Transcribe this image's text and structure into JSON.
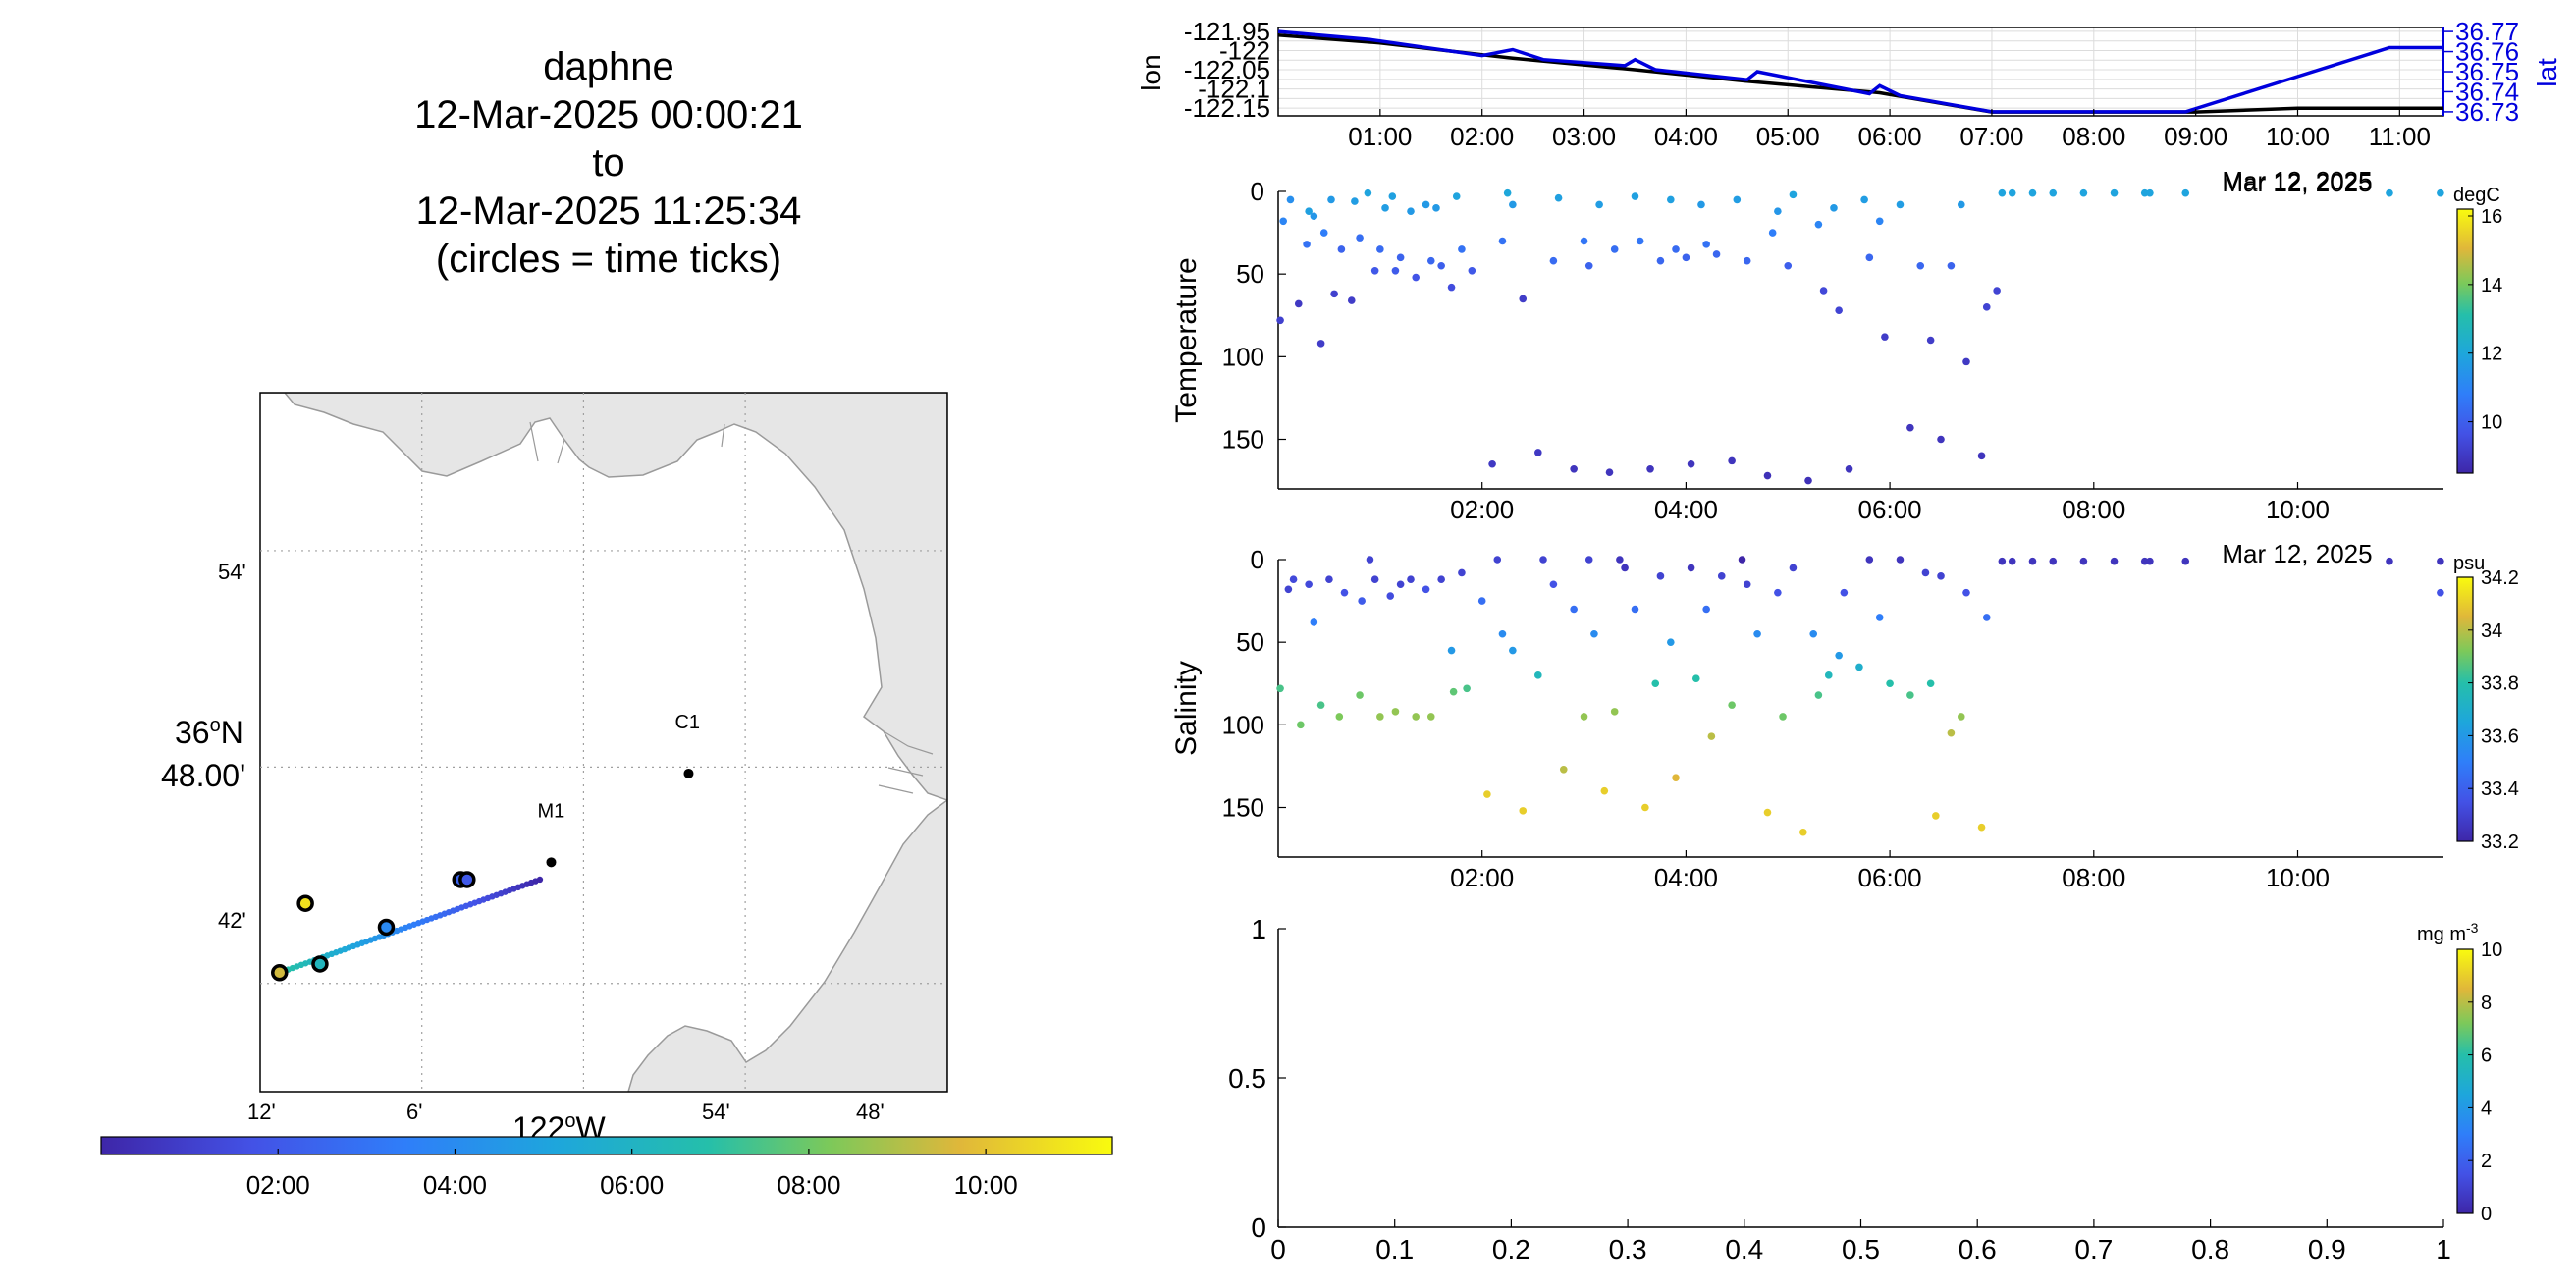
{
  "title": {
    "line1": "daphne",
    "line2": "12-Mar-2025 00:00:21",
    "line3": "to",
    "line4": "12-Mar-2025 11:25:34",
    "line5": "(circles = time ticks)"
  },
  "colors": {
    "track_lon": "#000000",
    "track_lat": "#0000dd",
    "land": "#e6e6e6",
    "coast": "#9a9a9a",
    "grid": "#a0a0a0"
  },
  "map": {
    "lat_labels": [
      "54'",
      "36°N",
      "48.00'",
      "42'"
    ],
    "lat_label_deg": "36",
    "lat_label_N": "N",
    "lon_labels": [
      "12'",
      "6'",
      "54'",
      "48'"
    ],
    "lon_axis_title_deg": "122",
    "lon_axis_title_W": "W",
    "stations": [
      {
        "name": "C1",
        "lon": -121.935,
        "lat": 36.797
      },
      {
        "name": "M1",
        "lon": -122.02,
        "lat": 36.756
      }
    ],
    "track": {
      "lon_start": -122.188,
      "lat_start": 36.705,
      "lon_end": -122.027,
      "lat_end": 36.748
    },
    "tick_circles": [
      {
        "lon": -122.188,
        "lat": 36.705,
        "t": 9.5
      },
      {
        "lon": -122.172,
        "lat": 36.737,
        "t": 10.8
      },
      {
        "lon": -122.163,
        "lat": 36.709,
        "t": 6.2
      },
      {
        "lon": -122.122,
        "lat": 36.726,
        "t": 3.9
      },
      {
        "lon": -122.076,
        "lat": 36.748,
        "t": 2.4
      },
      {
        "lon": -122.072,
        "lat": 36.748,
        "t": 2.0
      }
    ],
    "colorbar_ticks": [
      "02:00",
      "04:00",
      "06:00",
      "08:00",
      "10:00"
    ]
  },
  "chart_data": [
    {
      "type": "line",
      "title": "",
      "xlabel": "Mar 12, 2025",
      "ylabel": "lon",
      "ylabel_right": "lat",
      "x_tick_labels": [
        "01:00",
        "02:00",
        "03:00",
        "04:00",
        "05:00",
        "06:00",
        "07:00",
        "08:00",
        "09:00",
        "10:00",
        "11:00"
      ],
      "y_tick_labels": [
        "-121.95",
        "-122",
        "-122.05",
        "-122.1",
        "-122.15"
      ],
      "y_right_tick_labels": [
        "36.77",
        "36.76",
        "36.75",
        "36.74",
        "36.73"
      ],
      "ylim": [
        -122.17,
        -121.94
      ],
      "ylim_right": [
        36.728,
        36.772
      ],
      "series": [
        {
          "name": "lon",
          "axis": "left",
          "x": [
            0.0,
            1.0,
            2.3,
            3.5,
            4.6,
            5.9,
            7.0,
            8.0,
            9.0,
            10.0,
            11.0,
            11.43
          ],
          "y": [
            -121.96,
            -121.98,
            -122.02,
            -122.05,
            -122.08,
            -122.11,
            -122.16,
            -122.16,
            -122.16,
            -122.15,
            -122.15,
            -122.15
          ]
        },
        {
          "name": "lat",
          "axis": "right",
          "x": [
            0.0,
            0.9,
            2.0,
            2.3,
            2.6,
            3.4,
            3.5,
            3.7,
            4.6,
            4.7,
            5.8,
            5.9,
            6.1,
            7.0,
            8.0,
            8.9,
            10.9,
            11.43
          ],
          "y": [
            36.77,
            36.766,
            36.758,
            36.761,
            36.756,
            36.753,
            36.756,
            36.751,
            36.746,
            36.75,
            36.739,
            36.743,
            36.738,
            36.73,
            36.73,
            36.73,
            36.762,
            36.762
          ]
        }
      ]
    },
    {
      "type": "scatter",
      "title": "",
      "xlabel": "Mar 12, 2025",
      "ylabel": "Temperature",
      "colorbar_unit": "degC",
      "colorbar_ticks": [
        "10",
        "12",
        "14",
        "16"
      ],
      "clim": [
        8.5,
        16.2
      ],
      "ylim": [
        180,
        0
      ],
      "y_tick_labels": [
        "0",
        "50",
        "100",
        "150"
      ],
      "x_tick_labels": [
        "02:00",
        "04:00",
        "06:00",
        "08:00",
        "10:00"
      ],
      "points": [
        [
          0.02,
          78,
          9.2
        ],
        [
          0.05,
          18,
          11.0
        ],
        [
          0.12,
          5,
          11.3
        ],
        [
          0.2,
          68,
          9.0
        ],
        [
          0.28,
          32,
          10.5
        ],
        [
          0.3,
          12,
          11.8
        ],
        [
          0.35,
          15,
          11.5
        ],
        [
          0.42,
          92,
          9.1
        ],
        [
          0.45,
          25,
          10.8
        ],
        [
          0.52,
          5,
          11.6
        ],
        [
          0.55,
          62,
          9.2
        ],
        [
          0.62,
          35,
          10.1
        ],
        [
          0.72,
          66,
          9.1
        ],
        [
          0.75,
          6,
          11.7
        ],
        [
          0.8,
          28,
          10.4
        ],
        [
          0.88,
          1,
          11.9
        ],
        [
          0.95,
          48,
          9.8
        ],
        [
          1.0,
          35,
          10.3
        ],
        [
          1.05,
          10,
          11.7
        ],
        [
          1.12,
          3,
          11.8
        ],
        [
          1.15,
          48,
          9.9
        ],
        [
          1.2,
          40,
          10.1
        ],
        [
          1.3,
          12,
          11.6
        ],
        [
          1.35,
          52,
          9.7
        ],
        [
          1.45,
          8,
          11.6
        ],
        [
          1.5,
          42,
          10.2
        ],
        [
          1.55,
          10,
          11.6
        ],
        [
          1.6,
          45,
          10.0
        ],
        [
          1.7,
          58,
          9.5
        ],
        [
          1.75,
          3,
          11.9
        ],
        [
          1.8,
          35,
          10.5
        ],
        [
          1.9,
          48,
          9.8
        ],
        [
          2.1,
          165,
          9.0
        ],
        [
          2.2,
          30,
          10.5
        ],
        [
          2.25,
          1,
          12.0
        ],
        [
          2.3,
          8,
          11.6
        ],
        [
          2.4,
          65,
          9.1
        ],
        [
          2.55,
          158,
          9.0
        ],
        [
          2.7,
          42,
          10.3
        ],
        [
          2.75,
          4,
          11.8
        ],
        [
          2.9,
          168,
          8.9
        ],
        [
          3.0,
          30,
          10.6
        ],
        [
          3.05,
          45,
          10.1
        ],
        [
          3.15,
          8,
          11.7
        ],
        [
          3.25,
          170,
          8.9
        ],
        [
          3.3,
          35,
          10.4
        ],
        [
          3.5,
          3,
          11.8
        ],
        [
          3.55,
          30,
          10.6
        ],
        [
          3.65,
          168,
          8.9
        ],
        [
          3.75,
          42,
          10.2
        ],
        [
          3.85,
          5,
          11.8
        ],
        [
          3.9,
          35,
          10.3
        ],
        [
          4.0,
          40,
          10.1
        ],
        [
          4.05,
          165,
          8.9
        ],
        [
          4.15,
          8,
          11.6
        ],
        [
          4.2,
          32,
          10.5
        ],
        [
          4.3,
          38,
          10.2
        ],
        [
          4.45,
          163,
          8.9
        ],
        [
          4.5,
          5,
          11.7
        ],
        [
          4.6,
          42,
          10.2
        ],
        [
          4.8,
          172,
          8.8
        ],
        [
          4.85,
          25,
          10.8
        ],
        [
          4.9,
          12,
          11.5
        ],
        [
          5.0,
          45,
          10.0
        ],
        [
          5.05,
          2,
          11.9
        ],
        [
          5.2,
          175,
          8.8
        ],
        [
          5.3,
          20,
          11.0
        ],
        [
          5.35,
          60,
          9.4
        ],
        [
          5.45,
          10,
          11.6
        ],
        [
          5.5,
          72,
          9.3
        ],
        [
          5.6,
          168,
          8.9
        ],
        [
          5.75,
          5,
          11.7
        ],
        [
          5.8,
          40,
          10.2
        ],
        [
          5.9,
          18,
          11.0
        ],
        [
          5.95,
          88,
          9.1
        ],
        [
          6.1,
          8,
          11.7
        ],
        [
          6.2,
          143,
          8.9
        ],
        [
          6.3,
          45,
          10.2
        ],
        [
          6.4,
          90,
          9.1
        ],
        [
          6.5,
          150,
          8.9
        ],
        [
          6.6,
          45,
          10.1
        ],
        [
          6.7,
          8,
          11.6
        ],
        [
          6.75,
          103,
          9.0
        ],
        [
          6.9,
          160,
          8.9
        ],
        [
          6.95,
          70,
          9.3
        ],
        [
          7.05,
          60,
          9.3
        ],
        [
          7.1,
          1,
          11.9
        ],
        [
          7.2,
          1,
          11.9
        ],
        [
          7.4,
          1,
          11.9
        ],
        [
          7.6,
          1,
          11.9
        ],
        [
          7.9,
          1,
          11.9
        ],
        [
          8.2,
          1,
          11.9
        ],
        [
          8.5,
          1,
          11.9
        ],
        [
          8.55,
          1,
          11.9
        ],
        [
          8.9,
          1,
          11.9
        ],
        [
          10.9,
          1,
          11.9
        ],
        [
          11.4,
          1,
          11.9
        ]
      ]
    },
    {
      "type": "scatter",
      "title": "",
      "xlabel": "Mar 12, 2025",
      "ylabel": "Salinity",
      "colorbar_unit": "psu",
      "colorbar_ticks": [
        "33.2",
        "33.4",
        "33.6",
        "33.8",
        "34",
        "34.2"
      ],
      "clim": [
        33.2,
        34.2
      ],
      "ylim": [
        180,
        0
      ],
      "y_tick_labels": [
        "0",
        "50",
        "100",
        "150"
      ],
      "x_tick_labels": [
        "02:00",
        "04:00",
        "06:00",
        "08:00",
        "10:00"
      ],
      "points": [
        [
          0.02,
          78,
          33.85
        ],
        [
          0.1,
          18,
          33.3
        ],
        [
          0.15,
          12,
          33.32
        ],
        [
          0.22,
          100,
          33.9
        ],
        [
          0.3,
          15,
          33.32
        ],
        [
          0.35,
          38,
          33.5
        ],
        [
          0.42,
          88,
          33.85
        ],
        [
          0.5,
          12,
          33.3
        ],
        [
          0.6,
          95,
          33.92
        ],
        [
          0.65,
          20,
          33.35
        ],
        [
          0.8,
          82,
          33.9
        ],
        [
          0.82,
          25,
          33.38
        ],
        [
          0.9,
          0,
          33.3
        ],
        [
          0.95,
          12,
          33.3
        ],
        [
          1.0,
          95,
          33.95
        ],
        [
          1.1,
          22,
          33.33
        ],
        [
          1.15,
          92,
          33.95
        ],
        [
          1.2,
          15,
          33.3
        ],
        [
          1.3,
          12,
          33.3
        ],
        [
          1.35,
          95,
          33.95
        ],
        [
          1.45,
          18,
          33.35
        ],
        [
          1.5,
          95,
          33.95
        ],
        [
          1.6,
          12,
          33.3
        ],
        [
          1.7,
          55,
          33.6
        ],
        [
          1.72,
          80,
          33.88
        ],
        [
          1.8,
          8,
          33.3
        ],
        [
          1.85,
          78,
          33.85
        ],
        [
          2.0,
          25,
          33.45
        ],
        [
          2.05,
          142,
          34.1
        ],
        [
          2.15,
          0,
          33.3
        ],
        [
          2.2,
          45,
          33.55
        ],
        [
          2.3,
          55,
          33.6
        ],
        [
          2.4,
          152,
          34.1
        ],
        [
          2.55,
          70,
          33.75
        ],
        [
          2.6,
          0,
          33.3
        ],
        [
          2.7,
          15,
          33.35
        ],
        [
          2.8,
          127,
          34.0
        ],
        [
          2.9,
          30,
          33.45
        ],
        [
          3.0,
          95,
          33.95
        ],
        [
          3.05,
          0,
          33.3
        ],
        [
          3.1,
          45,
          33.55
        ],
        [
          3.2,
          140,
          34.1
        ],
        [
          3.3,
          92,
          33.95
        ],
        [
          3.35,
          0,
          33.25
        ],
        [
          3.4,
          5,
          33.25
        ],
        [
          3.5,
          30,
          33.45
        ],
        [
          3.6,
          150,
          34.1
        ],
        [
          3.7,
          75,
          33.8
        ],
        [
          3.75,
          10,
          33.3
        ],
        [
          3.85,
          50,
          33.6
        ],
        [
          3.9,
          132,
          34.05
        ],
        [
          4.05,
          5,
          33.25
        ],
        [
          4.1,
          72,
          33.8
        ],
        [
          4.2,
          30,
          33.45
        ],
        [
          4.25,
          107,
          34.0
        ],
        [
          4.35,
          10,
          33.3
        ],
        [
          4.45,
          88,
          33.9
        ],
        [
          4.55,
          0,
          33.2
        ],
        [
          4.6,
          15,
          33.3
        ],
        [
          4.7,
          45,
          33.55
        ],
        [
          4.8,
          153,
          34.1
        ],
        [
          4.9,
          20,
          33.35
        ],
        [
          4.95,
          95,
          33.9
        ],
        [
          5.05,
          5,
          33.3
        ],
        [
          5.15,
          165,
          34.1
        ],
        [
          5.25,
          45,
          33.55
        ],
        [
          5.3,
          82,
          33.85
        ],
        [
          5.4,
          70,
          33.75
        ],
        [
          5.5,
          58,
          33.6
        ],
        [
          5.55,
          20,
          33.35
        ],
        [
          5.7,
          65,
          33.7
        ],
        [
          5.8,
          0,
          33.25
        ],
        [
          5.9,
          35,
          33.5
        ],
        [
          6.0,
          75,
          33.8
        ],
        [
          6.1,
          0,
          33.25
        ],
        [
          6.2,
          82,
          33.85
        ],
        [
          6.35,
          8,
          33.3
        ],
        [
          6.4,
          75,
          33.8
        ],
        [
          6.45,
          155,
          34.1
        ],
        [
          6.5,
          10,
          33.3
        ],
        [
          6.6,
          105,
          34.0
        ],
        [
          6.7,
          95,
          33.95
        ],
        [
          6.75,
          20,
          33.35
        ],
        [
          6.9,
          162,
          34.1
        ],
        [
          6.95,
          35,
          33.45
        ],
        [
          7.1,
          1,
          33.25
        ],
        [
          7.2,
          1,
          33.25
        ],
        [
          7.4,
          1,
          33.25
        ],
        [
          7.6,
          1,
          33.25
        ],
        [
          7.9,
          1,
          33.25
        ],
        [
          8.2,
          1,
          33.25
        ],
        [
          8.5,
          1,
          33.25
        ],
        [
          8.55,
          1,
          33.25
        ],
        [
          8.9,
          1,
          33.25
        ],
        [
          10.9,
          1,
          33.25
        ],
        [
          11.4,
          1,
          33.25
        ],
        [
          11.4,
          20,
          33.35
        ]
      ]
    },
    {
      "type": "scatter",
      "title": "",
      "xlabel": "",
      "ylabel": "",
      "colorbar_unit": "mg m",
      "colorbar_unit_exp": "-3",
      "colorbar_ticks": [
        "0",
        "2",
        "4",
        "6",
        "8",
        "10"
      ],
      "clim": [
        0,
        10
      ],
      "xlim": [
        0,
        1
      ],
      "ylim": [
        0,
        1
      ],
      "x_tick_labels": [
        "0",
        "0.1",
        "0.2",
        "0.3",
        "0.4",
        "0.5",
        "0.6",
        "0.7",
        "0.8",
        "0.9",
        "1"
      ],
      "y_tick_labels": [
        "0",
        "0.5",
        "1"
      ],
      "points": []
    }
  ],
  "overlap_labels": {
    "p2_date": "Mar 12, 2025",
    "p3_date": "Mar 12, 2025"
  }
}
